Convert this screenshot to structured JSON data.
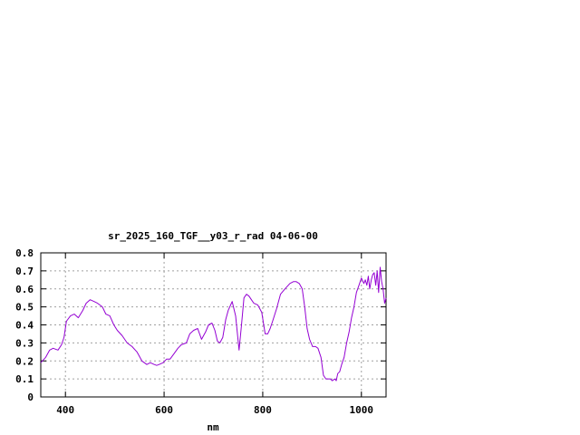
{
  "chart_data": {
    "type": "line",
    "title": "sr_2025_160_TGF__y03_r_rad 04-06-00",
    "xlabel": "nm",
    "ylabel": "",
    "xlim": [
      350,
      1050
    ],
    "ylim": [
      0,
      0.8
    ],
    "xticks": [
      400,
      600,
      800,
      1000
    ],
    "yticks": [
      0,
      0.1,
      0.2,
      0.3,
      0.4,
      0.5,
      0.6,
      0.7,
      0.8
    ],
    "ytick_labels": [
      "0",
      "0.1",
      "0.2",
      "0.3",
      "0.4",
      "0.5",
      "0.6",
      "0.7",
      "0.8"
    ],
    "grid": true,
    "line_color": "#9400d3",
    "series": [
      {
        "x": [
          350,
          360,
          368,
          375,
          385,
          392,
          397,
          402,
          410,
          418,
          426,
          435,
          442,
          450,
          458,
          465,
          475,
          482,
          490,
          498,
          505,
          515,
          525,
          535,
          545,
          555,
          565,
          572,
          580,
          585,
          590,
          598,
          605,
          612,
          620,
          628,
          635,
          645,
          652,
          660,
          668,
          676,
          684,
          690,
          697,
          703,
          708,
          713,
          719,
          725,
          730,
          738,
          745,
          752,
          757,
          762,
          767,
          772,
          777,
          782,
          790,
          798,
          805,
          810,
          815,
          820,
          828,
          836,
          845,
          855,
          862,
          868,
          874,
          880,
          885,
          890,
          895,
          901,
          907,
          912,
          918,
          923,
          928,
          933,
          937,
          941,
          946,
          949,
          952,
          956,
          960,
          965,
          970,
          975,
          980,
          985,
          990,
          995,
          1000,
          1005,
          1008,
          1011,
          1014,
          1017,
          1020,
          1023,
          1026,
          1029,
          1032,
          1035,
          1038,
          1041,
          1044,
          1047,
          1050
        ],
        "y": [
          0.19,
          0.22,
          0.26,
          0.27,
          0.26,
          0.29,
          0.33,
          0.42,
          0.45,
          0.46,
          0.44,
          0.48,
          0.52,
          0.54,
          0.53,
          0.52,
          0.5,
          0.46,
          0.45,
          0.4,
          0.37,
          0.34,
          0.3,
          0.28,
          0.25,
          0.2,
          0.18,
          0.19,
          0.18,
          0.175,
          0.18,
          0.19,
          0.21,
          0.21,
          0.24,
          0.27,
          0.29,
          0.3,
          0.35,
          0.37,
          0.38,
          0.32,
          0.36,
          0.4,
          0.41,
          0.37,
          0.31,
          0.3,
          0.33,
          0.43,
          0.48,
          0.53,
          0.45,
          0.26,
          0.4,
          0.55,
          0.57,
          0.56,
          0.54,
          0.52,
          0.51,
          0.47,
          0.35,
          0.35,
          0.38,
          0.42,
          0.49,
          0.57,
          0.6,
          0.63,
          0.64,
          0.64,
          0.63,
          0.6,
          0.5,
          0.38,
          0.32,
          0.28,
          0.28,
          0.27,
          0.22,
          0.12,
          0.1,
          0.1,
          0.1,
          0.09,
          0.1,
          0.09,
          0.13,
          0.14,
          0.18,
          0.22,
          0.3,
          0.36,
          0.44,
          0.5,
          0.58,
          0.62,
          0.66,
          0.63,
          0.65,
          0.62,
          0.67,
          0.6,
          0.65,
          0.68,
          0.69,
          0.62,
          0.7,
          0.58,
          0.72,
          0.64,
          0.6,
          0.52,
          0.55
        ]
      }
    ]
  }
}
